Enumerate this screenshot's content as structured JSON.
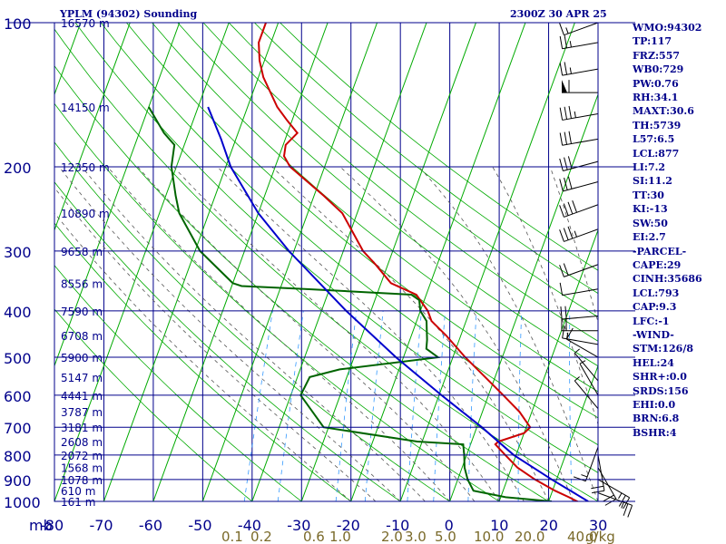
{
  "header": {
    "station_title": "YPLM (94302) Sounding",
    "time_title": "2300Z 30 APR 25"
  },
  "indices": [
    "WMO:94302",
    "TP:117",
    "FRZ:557",
    "WB0:729",
    "PW:0.76",
    "RH:34.1",
    "MAXT:30.6",
    "TH:5739",
    "L57:6.5",
    "LCL:877",
    "LI:7.2",
    "SI:11.2",
    "TT:30",
    "KI:-13",
    "SW:50",
    "EI:2.7",
    "-PARCEL-",
    "CAPE:29",
    "CINH:35686",
    "LCL:793",
    "CAP:9.3",
    "LFC:-1",
    "-WIND-",
    "STM:126/8",
    "HEL:24",
    "SHR+:0.0",
    "SRDS:156",
    "EHI:0.0",
    "BRN:6.8",
    "BSHR:4"
  ],
  "colors": {
    "frame": "#00008b",
    "isobar": "#00008b",
    "isotherm": "#00008b",
    "dry_adiabat": "#00aa00",
    "moist_adiabat": "#555555",
    "mixing_ratio": "#3399ff",
    "temperature": "#cc0000",
    "dewpoint": "#006400",
    "parcel": "#0000cc",
    "height_label": "#00008b",
    "mixing_label": "#7a6a2a",
    "wind_barb": "#000000"
  },
  "chart_data": {
    "type": "line",
    "title": "YPLM (94302) Sounding",
    "x_axis_unit": "mb",
    "y_axis": {
      "ticks": [
        100,
        200,
        300,
        400,
        500,
        600,
        700,
        800,
        900,
        1000
      ],
      "range": [
        1000,
        100
      ]
    },
    "x_axis": {
      "ticks": [
        -80,
        -70,
        -60,
        -50,
        -40,
        -30,
        -20,
        -10,
        0,
        10,
        20,
        30
      ],
      "range": [
        -80,
        30
      ]
    },
    "height_labels": [
      {
        "p": 100,
        "label": "16570 m"
      },
      {
        "p": 150,
        "label": "14150 m"
      },
      {
        "p": 200,
        "label": "12350 m"
      },
      {
        "p": 250,
        "label": "10890 m"
      },
      {
        "p": 300,
        "label": "9658 m"
      },
      {
        "p": 350,
        "label": "8556 m"
      },
      {
        "p": 400,
        "label": "7590 m"
      },
      {
        "p": 450,
        "label": "6708 m"
      },
      {
        "p": 500,
        "label": "5900 m"
      },
      {
        "p": 550,
        "label": "5147 m"
      },
      {
        "p": 600,
        "label": "4441 m"
      },
      {
        "p": 650,
        "label": "3787 m"
      },
      {
        "p": 700,
        "label": "3181 m"
      },
      {
        "p": 750,
        "label": "2608 m"
      },
      {
        "p": 800,
        "label": "2072 m"
      },
      {
        "p": 850,
        "label": "1568 m"
      },
      {
        "p": 900,
        "label": "1078 m"
      },
      {
        "p": 950,
        "label": "610 m"
      },
      {
        "p": 1000,
        "label": "161 m"
      }
    ],
    "mixing_ratio_ticks": [
      {
        "value": 0.1,
        "label": "0.1"
      },
      {
        "value": 0.2,
        "label": "0.2"
      },
      {
        "value": 0.6,
        "label": "0.6"
      },
      {
        "value": 1.0,
        "label": "1.0"
      },
      {
        "value": 2.0,
        "label": "2.0"
      },
      {
        "value": 3.0,
        "label": "3.0"
      },
      {
        "value": 5.0,
        "label": "5.0"
      },
      {
        "value": 10.0,
        "label": "10.0"
      },
      {
        "value": 20.0,
        "label": "20.0"
      },
      {
        "value": 40.0,
        "label": "40.0"
      }
    ],
    "mixing_ratio_unit": "g/kg",
    "series": [
      {
        "role": "temperature",
        "points": [
          {
            "p": 1010,
            "t": 24
          },
          {
            "p": 1000,
            "t": 25.8
          },
          {
            "p": 980,
            "t": 23.8
          },
          {
            "p": 950,
            "t": 20.5
          },
          {
            "p": 900,
            "t": 15.6
          },
          {
            "p": 850,
            "t": 11.2
          },
          {
            "p": 800,
            "t": 7.8
          },
          {
            "p": 760,
            "t": 5
          },
          {
            "p": 750,
            "t": 5.4
          },
          {
            "p": 720,
            "t": 10
          },
          {
            "p": 700,
            "t": 10.8
          },
          {
            "p": 650,
            "t": 7.5
          },
          {
            "p": 600,
            "t": 3
          },
          {
            "p": 550,
            "t": -2
          },
          {
            "p": 500,
            "t": -7.5
          },
          {
            "p": 450,
            "t": -13
          },
          {
            "p": 420,
            "t": -17
          },
          {
            "p": 400,
            "t": -18.5
          },
          {
            "p": 370,
            "t": -22
          },
          {
            "p": 360,
            "t": -25
          },
          {
            "p": 350,
            "t": -28
          },
          {
            "p": 320,
            "t": -32.5
          },
          {
            "p": 300,
            "t": -36
          },
          {
            "p": 250,
            "t": -43
          },
          {
            "p": 230,
            "t": -48
          },
          {
            "p": 200,
            "t": -57
          },
          {
            "p": 190,
            "t": -59
          },
          {
            "p": 180,
            "t": -59.5
          },
          {
            "p": 170,
            "t": -58
          },
          {
            "p": 160,
            "t": -61
          },
          {
            "p": 150,
            "t": -64
          },
          {
            "p": 130,
            "t": -69
          },
          {
            "p": 120,
            "t": -71
          },
          {
            "p": 110,
            "t": -72.5
          },
          {
            "p": 100,
            "t": -72.5
          }
        ]
      },
      {
        "role": "dewpoint",
        "points": [
          {
            "p": 1010,
            "t": 21
          },
          {
            "p": 1000,
            "t": 20.5
          },
          {
            "p": 980,
            "t": 11
          },
          {
            "p": 950,
            "t": 4
          },
          {
            "p": 900,
            "t": 2
          },
          {
            "p": 850,
            "t": 0.5
          },
          {
            "p": 800,
            "t": -0.5
          },
          {
            "p": 760,
            "t": -1.5
          },
          {
            "p": 750,
            "t": -11
          },
          {
            "p": 700,
            "t": -31
          },
          {
            "p": 600,
            "t": -38
          },
          {
            "p": 550,
            "t": -37.5
          },
          {
            "p": 530,
            "t": -32
          },
          {
            "p": 500,
            "t": -13
          },
          {
            "p": 480,
            "t": -16
          },
          {
            "p": 460,
            "t": -16.5
          },
          {
            "p": 420,
            "t": -18
          },
          {
            "p": 400,
            "t": -20
          },
          {
            "p": 380,
            "t": -21
          },
          {
            "p": 370,
            "t": -23
          },
          {
            "p": 360,
            "t": -45
          },
          {
            "p": 355,
            "t": -58
          },
          {
            "p": 350,
            "t": -60
          },
          {
            "p": 300,
            "t": -69
          },
          {
            "p": 250,
            "t": -76
          },
          {
            "p": 230,
            "t": -78
          },
          {
            "p": 200,
            "t": -81
          },
          {
            "p": 180,
            "t": -82
          },
          {
            "p": 170,
            "t": -85
          },
          {
            "p": 150,
            "t": -90
          }
        ]
      },
      {
        "role": "parcel",
        "points": [
          {
            "p": 1000,
            "t": 28
          },
          {
            "p": 900,
            "t": 19
          },
          {
            "p": 800,
            "t": 9.5
          },
          {
            "p": 700,
            "t": 1
          },
          {
            "p": 600,
            "t": -9.5
          },
          {
            "p": 500,
            "t": -21.5
          },
          {
            "p": 400,
            "t": -35
          },
          {
            "p": 300,
            "t": -51
          },
          {
            "p": 250,
            "t": -60
          },
          {
            "p": 200,
            "t": -69
          },
          {
            "p": 175,
            "t": -73
          },
          {
            "p": 150,
            "t": -78
          }
        ]
      }
    ],
    "wind_barbs": [
      {
        "p": 100,
        "dir": 250,
        "spd": 15
      },
      {
        "p": 110,
        "dir": 260,
        "spd": 25
      },
      {
        "p": 125,
        "dir": 260,
        "spd": 25
      },
      {
        "p": 140,
        "dir": 270,
        "spd": 60
      },
      {
        "p": 155,
        "dir": 260,
        "spd": 35
      },
      {
        "p": 175,
        "dir": 260,
        "spd": 30
      },
      {
        "p": 195,
        "dir": 255,
        "spd": 30
      },
      {
        "p": 215,
        "dir": 255,
        "spd": 30
      },
      {
        "p": 240,
        "dir": 250,
        "spd": 40
      },
      {
        "p": 270,
        "dir": 250,
        "spd": 35
      },
      {
        "p": 320,
        "dir": 250,
        "spd": 20
      },
      {
        "p": 360,
        "dir": 260,
        "spd": 10
      },
      {
        "p": 410,
        "dir": 265,
        "spd": 20
      },
      {
        "p": 440,
        "dir": 270,
        "spd": 20
      },
      {
        "p": 470,
        "dir": 280,
        "spd": 15
      },
      {
        "p": 500,
        "dir": 300,
        "spd": 10
      },
      {
        "p": 560,
        "dir": 320,
        "spd": 5
      },
      {
        "p": 600,
        "dir": 330,
        "spd": 5
      },
      {
        "p": 640,
        "dir": 320,
        "spd": 5
      },
      {
        "p": 770,
        "dir": 200,
        "spd": 15
      },
      {
        "p": 800,
        "dir": 170,
        "spd": 20
      },
      {
        "p": 850,
        "dir": 150,
        "spd": 20
      },
      {
        "p": 900,
        "dir": 120,
        "spd": 25
      },
      {
        "p": 960,
        "dir": 110,
        "spd": 25
      }
    ]
  }
}
